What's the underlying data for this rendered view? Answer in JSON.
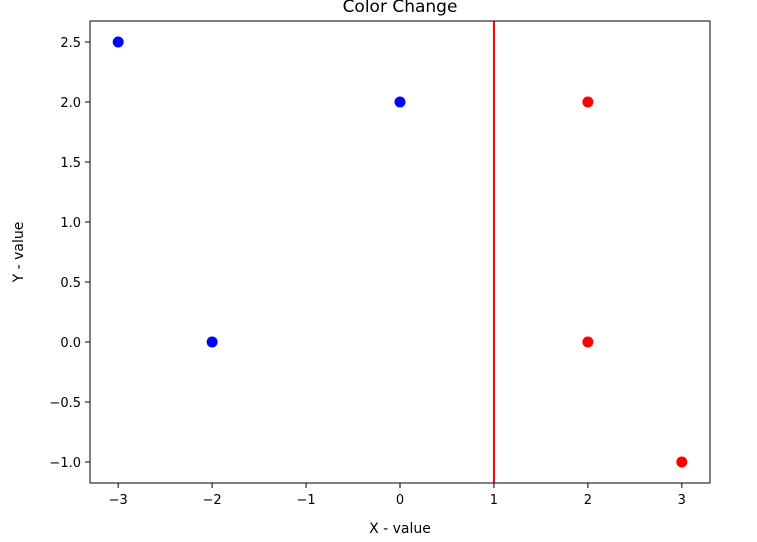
{
  "chart_data": {
    "type": "scatter",
    "title": "Color Change",
    "xlabel": "X - value",
    "ylabel": "Y - value",
    "xlim": [
      -3.3,
      3.3
    ],
    "ylim": [
      -1.175,
      2.675
    ],
    "xticks": [
      -3,
      -2,
      -1,
      0,
      1,
      2,
      3
    ],
    "xtick_labels": [
      "−3",
      "−2",
      "−1",
      "0",
      "1",
      "2",
      "3"
    ],
    "yticks": [
      -1.0,
      -0.5,
      0.0,
      0.5,
      1.0,
      1.5,
      2.0,
      2.5
    ],
    "ytick_labels": [
      "−1.0",
      "−0.5",
      "0.0",
      "0.5",
      "1.0",
      "1.5",
      "2.0",
      "2.5"
    ],
    "grid": false,
    "points": [
      {
        "x": -3,
        "y": 2.5,
        "color": "#0000ff"
      },
      {
        "x": -2,
        "y": 0.0,
        "color": "#0000ff"
      },
      {
        "x": 0,
        "y": 2.0,
        "color": "#0000ff"
      },
      {
        "x": 2,
        "y": 2.0,
        "color": "#ff0000"
      },
      {
        "x": 2,
        "y": 0.0,
        "color": "#ff0000"
      },
      {
        "x": 3,
        "y": -1.0,
        "color": "#ff0000"
      }
    ],
    "vline": {
      "x": 1,
      "color": "#ff0000"
    }
  }
}
